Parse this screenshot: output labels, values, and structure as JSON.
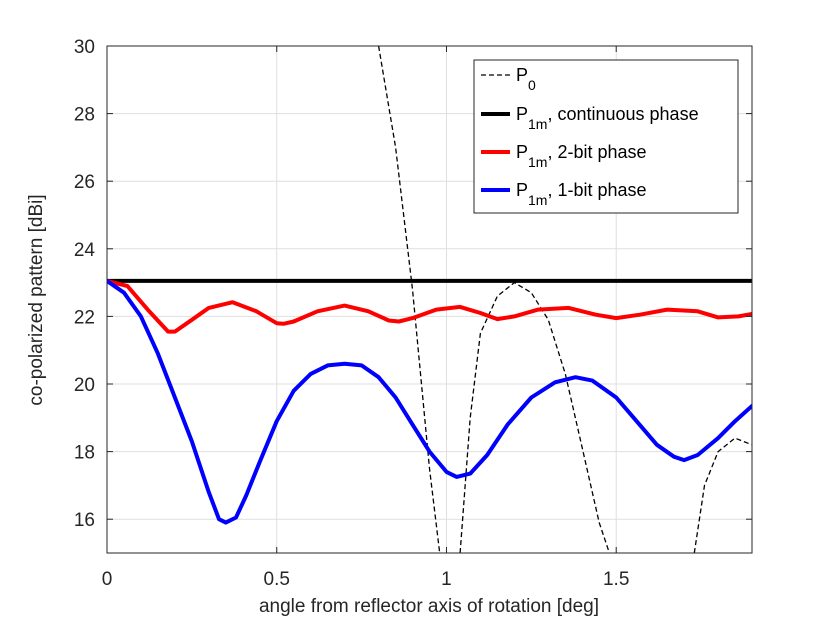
{
  "chart_data": {
    "type": "line",
    "title": "",
    "xlabel": "angle from reflector axis of rotation [deg]",
    "ylabel": "co-polarized pattern [dBi]",
    "xlim": [
      0,
      1.9
    ],
    "ylim": [
      15,
      30
    ],
    "xticks": [
      0,
      0.5,
      1,
      1.5
    ],
    "xtick_labels": [
      "0",
      "0.5",
      "1",
      "1.5"
    ],
    "yticks": [
      16,
      18,
      20,
      22,
      24,
      26,
      28,
      30
    ],
    "ytick_labels": [
      "16",
      "18",
      "20",
      "22",
      "24",
      "26",
      "28",
      "30"
    ],
    "grid": true,
    "legend_position": "top-right",
    "series": [
      {
        "name": "P0",
        "legend_base": "P",
        "legend_sub": "0",
        "legend_rest": "",
        "color": "#000000",
        "style": "dashed",
        "segments": [
          {
            "x": [
              0.8,
              0.85,
              0.9,
              0.95,
              0.98
            ],
            "y": [
              30.0,
              27.0,
              22.8,
              17.5,
              15.0
            ]
          },
          {
            "x": [
              1.04,
              1.07,
              1.1,
              1.15,
              1.2,
              1.25,
              1.3,
              1.35,
              1.4,
              1.45,
              1.48
            ],
            "y": [
              15.0,
              19.0,
              21.5,
              22.6,
              23.0,
              22.7,
              21.9,
              20.3,
              18.1,
              15.9,
              15.0
            ]
          },
          {
            "x": [
              1.73,
              1.76,
              1.8,
              1.85,
              1.9
            ],
            "y": [
              15.0,
              17.0,
              18.0,
              18.4,
              18.2
            ]
          }
        ]
      },
      {
        "name": "P1m, continuous phase",
        "legend_base": "P",
        "legend_sub": "1m",
        "legend_rest": ", continuous phase",
        "color": "#000000",
        "style": "solid",
        "segments": [
          {
            "x": [
              0,
              1.9
            ],
            "y": [
              23.05,
              23.05
            ]
          }
        ]
      },
      {
        "name": "P1m, 2-bit phase",
        "legend_base": "P",
        "legend_sub": "1m",
        "legend_rest": ", 2-bit phase",
        "color": "#ff0000",
        "style": "solid",
        "segments": [
          {
            "x": [
              0,
              0.06,
              0.12,
              0.18,
              0.2,
              0.25,
              0.3,
              0.37,
              0.44,
              0.5,
              0.52,
              0.55,
              0.62,
              0.7,
              0.77,
              0.83,
              0.86,
              0.9,
              0.97,
              1.04,
              1.1,
              1.15,
              1.2,
              1.27,
              1.36,
              1.44,
              1.5,
              1.57,
              1.65,
              1.74,
              1.8,
              1.86,
              1.9
            ],
            "y": [
              23.05,
              22.9,
              22.2,
              21.55,
              21.55,
              21.9,
              22.25,
              22.42,
              22.15,
              21.8,
              21.78,
              21.85,
              22.15,
              22.32,
              22.15,
              21.88,
              21.85,
              21.95,
              22.2,
              22.28,
              22.1,
              21.92,
              22.0,
              22.2,
              22.25,
              22.05,
              21.95,
              22.05,
              22.2,
              22.15,
              21.97,
              22.0,
              22.07
            ]
          }
        ]
      },
      {
        "name": "P1m, 1-bit phase",
        "legend_base": "P",
        "legend_sub": "1m",
        "legend_rest": ", 1-bit phase",
        "color": "#0000ff",
        "style": "solid",
        "segments": [
          {
            "x": [
              0,
              0.05,
              0.1,
              0.15,
              0.2,
              0.25,
              0.3,
              0.33,
              0.35,
              0.38,
              0.41,
              0.45,
              0.5,
              0.55,
              0.6,
              0.65,
              0.7,
              0.75,
              0.8,
              0.85,
              0.9,
              0.95,
              1.0,
              1.03,
              1.07,
              1.12,
              1.18,
              1.25,
              1.32,
              1.38,
              1.43,
              1.5,
              1.56,
              1.62,
              1.67,
              1.7,
              1.74,
              1.8,
              1.85,
              1.9
            ],
            "y": [
              23.05,
              22.7,
              22.0,
              20.9,
              19.6,
              18.3,
              16.8,
              16.0,
              15.9,
              16.05,
              16.7,
              17.7,
              18.9,
              19.8,
              20.3,
              20.55,
              20.6,
              20.55,
              20.2,
              19.6,
              18.8,
              18.0,
              17.4,
              17.25,
              17.35,
              17.9,
              18.8,
              19.6,
              20.05,
              20.2,
              20.1,
              19.6,
              18.9,
              18.2,
              17.85,
              17.75,
              17.9,
              18.4,
              18.9,
              19.35
            ]
          }
        ]
      }
    ]
  }
}
